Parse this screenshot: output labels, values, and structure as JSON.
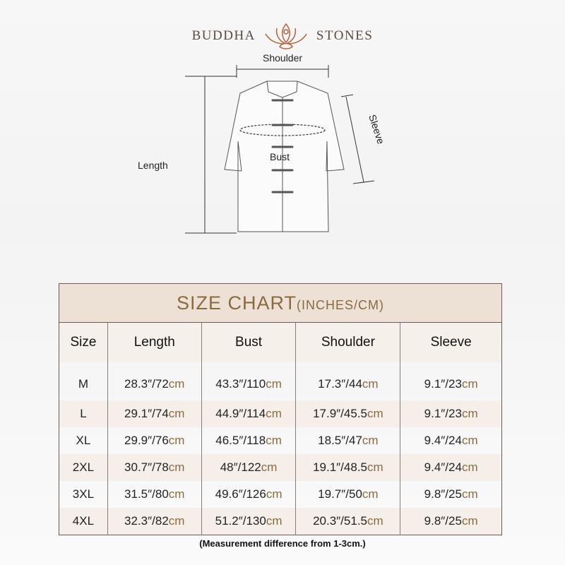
{
  "brand": {
    "left": "BUDDHA",
    "right": "STONES"
  },
  "diagram": {
    "shoulder": "Shoulder",
    "sleeve": "Sleeve",
    "bust": "Bust",
    "length": "Length"
  },
  "table": {
    "title": "SIZE CHART",
    "title_units": "(INCHES/CM)",
    "headers": [
      "Size",
      "Length",
      "Bust",
      "Shoulder",
      "Sleeve"
    ],
    "unit": "cm",
    "rows": [
      {
        "size": "M",
        "cells": [
          "28.3″/72",
          "43.3″/110",
          "17.3″/44",
          "9.1″/23"
        ]
      },
      {
        "size": "L",
        "cells": [
          "29.1″/74",
          "44.9″/114",
          "17.9″/45.5",
          "9.1″/23"
        ]
      },
      {
        "size": "XL",
        "cells": [
          "29.9″/76",
          "46.5″/118",
          "18.5″/47",
          "9.4″/24"
        ]
      },
      {
        "size": "2XL",
        "cells": [
          "30.7″/78",
          "48″/122",
          "19.1″/48.5",
          "9.4″/24"
        ]
      },
      {
        "size": "3XL",
        "cells": [
          "31.5″/80",
          "49.6″/126",
          "19.7″/50",
          "9.8″/25"
        ]
      },
      {
        "size": "4XL",
        "cells": [
          "32.3″/82",
          "51.2″/130",
          "20.3″/51.5",
          "9.8″/25"
        ]
      }
    ]
  },
  "note": "(Measurement difference from 1-3cm.)",
  "colors": {
    "accent": "#8b6a3e",
    "header_bg": "#ede1d6",
    "logo": "#b5603a"
  }
}
